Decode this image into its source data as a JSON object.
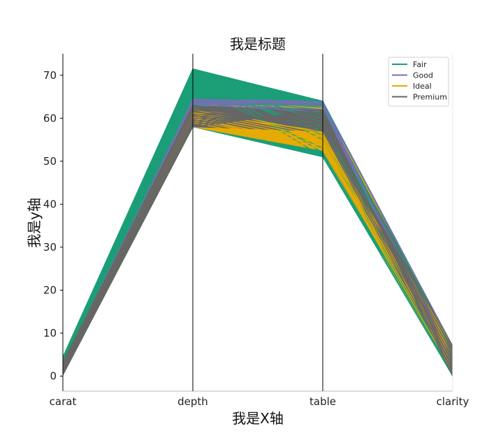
{
  "chart_data": {
    "type": "parallel_coordinates",
    "title": "我是标题",
    "xlabel": "我是X轴",
    "ylabel": "我是y轴",
    "dimensions": [
      "carat",
      "depth",
      "table",
      "clarity"
    ],
    "ylim": [
      -3.5,
      75
    ],
    "yticks": [
      0,
      10,
      20,
      30,
      40,
      50,
      60,
      70
    ],
    "grid": false,
    "legend_position": "top-right",
    "series": [
      {
        "name": "Fair",
        "color": "#1b9e77",
        "ranges": [
          [
            0.2,
            4.5
          ],
          [
            58.0,
            71.5
          ],
          [
            51.0,
            64.0
          ],
          [
            0,
            6
          ]
        ],
        "samples": [
          [
            0.3,
            71.3,
            55.0,
            0
          ],
          [
            0.5,
            70.4,
            52.0,
            1
          ],
          [
            0.8,
            69.6,
            51.0,
            2
          ],
          [
            1.0,
            68.8,
            56.0,
            0
          ],
          [
            1.2,
            68.1,
            57.0,
            3
          ],
          [
            1.5,
            67.4,
            58.0,
            1
          ],
          [
            2.0,
            66.6,
            60.0,
            2
          ],
          [
            2.5,
            65.9,
            61.0,
            4
          ],
          [
            3.0,
            65.0,
            62.0,
            3
          ],
          [
            3.5,
            64.2,
            63.0,
            5
          ],
          [
            4.0,
            63.6,
            64.0,
            6
          ],
          [
            4.4,
            62.8,
            63.5,
            2
          ],
          [
            0.6,
            67.0,
            53.0,
            0
          ],
          [
            1.1,
            64.8,
            62.5,
            1
          ],
          [
            0.9,
            70.0,
            59.0,
            0
          ]
        ]
      },
      {
        "name": "Good",
        "color": "#7570b3",
        "ranges": [
          [
            0.2,
            3.0
          ],
          [
            58.5,
            64.5
          ],
          [
            53.0,
            64.0
          ],
          [
            0,
            7
          ]
        ],
        "samples": [
          [
            0.4,
            64.4,
            63.8,
            1
          ],
          [
            0.7,
            64.0,
            63.2,
            2
          ],
          [
            1.0,
            63.8,
            62.8,
            3
          ],
          [
            1.3,
            63.5,
            62.0,
            4
          ],
          [
            2.0,
            63.2,
            61.5,
            5
          ],
          [
            2.8,
            64.2,
            63.5,
            7
          ]
        ]
      },
      {
        "name": "Ideal",
        "color": "#e6ab02",
        "ranges": [
          [
            0.2,
            3.5
          ],
          [
            58.0,
            63.0
          ],
          [
            52.5,
            63.0
          ],
          [
            0,
            7
          ]
        ],
        "samples": [
          [
            0.3,
            59.0,
            53.0,
            1
          ],
          [
            0.5,
            59.5,
            53.5,
            2
          ],
          [
            0.7,
            60.0,
            54.0,
            3
          ],
          [
            0.9,
            60.5,
            54.5,
            4
          ],
          [
            1.1,
            61.0,
            55.0,
            5
          ],
          [
            1.4,
            61.5,
            55.5,
            6
          ],
          [
            1.8,
            62.0,
            56.0,
            7
          ],
          [
            2.2,
            62.5,
            56.5,
            3
          ],
          [
            2.8,
            61.2,
            57.0,
            2
          ],
          [
            3.3,
            60.2,
            52.8,
            5
          ]
        ]
      },
      {
        "name": "Premium",
        "color": "#666666",
        "ranges": [
          [
            0.2,
            3.5
          ],
          [
            58.0,
            63.0
          ],
          [
            57.0,
            62.0
          ],
          [
            0,
            7
          ]
        ],
        "samples": [
          [
            0.3,
            58.0,
            62.0,
            0
          ],
          [
            0.5,
            58.5,
            61.5,
            1
          ],
          [
            0.7,
            59.0,
            61.0,
            2
          ],
          [
            0.9,
            59.5,
            60.5,
            3
          ],
          [
            1.1,
            60.0,
            60.0,
            4
          ],
          [
            1.3,
            60.5,
            59.5,
            5
          ],
          [
            1.5,
            61.0,
            59.0,
            6
          ],
          [
            1.8,
            61.5,
            58.5,
            7
          ],
          [
            2.1,
            62.0,
            58.0,
            3
          ],
          [
            2.5,
            62.5,
            57.5,
            2
          ],
          [
            2.9,
            63.0,
            57.0,
            1
          ],
          [
            3.3,
            62.2,
            58.8,
            4
          ]
        ]
      }
    ]
  }
}
